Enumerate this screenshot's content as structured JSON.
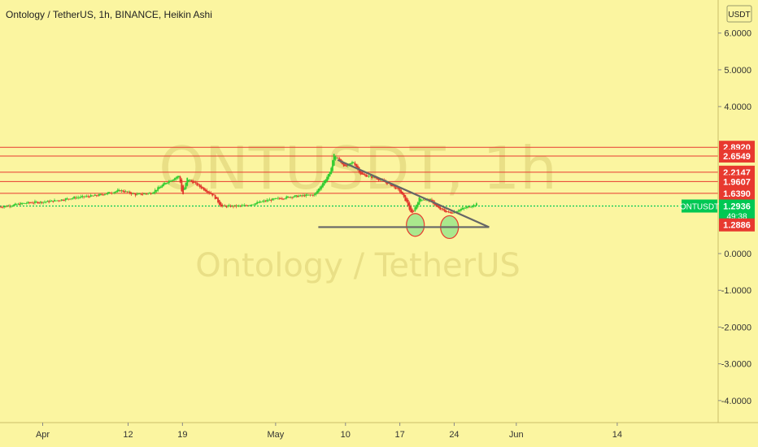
{
  "header": {
    "title": "Ontology / TetherUS, 1h, BINANCE, Heikin Ashi"
  },
  "watermark": {
    "symbol": "ONTUSDT, 1h",
    "name": "Ontology / TetherUS"
  },
  "currency_label": "USDT",
  "colors": {
    "background": "#fbf5a0",
    "candle_up": "#2fcc2f",
    "candle_down": "#e0352b",
    "level_line": "#e8392f",
    "level_label": "#e8392f",
    "current_price": "#00c853",
    "trendline": "#666666",
    "circle_fill": "#9be58a",
    "circle_stroke": "#e8392f"
  },
  "chart_data": {
    "type": "candlestick",
    "style": "Heikin Ashi",
    "interval": "1h",
    "exchange": "BINANCE",
    "symbol": "ONTUSDT",
    "y_axis": {
      "ticks": [
        "6.0000",
        "5.0000",
        "4.0000",
        "0.0000",
        "-1.0000",
        "-2.0000",
        "-3.0000",
        "-4.0000"
      ],
      "tick_values": [
        6,
        5,
        4,
        0,
        -1,
        -2,
        -3,
        -4
      ],
      "range": [
        -4.6,
        6.9
      ]
    },
    "x_axis": {
      "ticks": [
        "Apr",
        "12",
        "19",
        "May",
        "10",
        "17",
        "24",
        "Jun",
        "14"
      ],
      "tick_values": [
        1,
        12,
        19,
        31,
        40,
        47,
        54,
        62,
        75
      ],
      "range": [
        -4.5,
        88
      ]
    },
    "price_path": [
      [
        -4.5,
        1.27
      ],
      [
        -1,
        1.38
      ],
      [
        2,
        1.42
      ],
      [
        5,
        1.52
      ],
      [
        8,
        1.58
      ],
      [
        11,
        1.72
      ],
      [
        13,
        1.6
      ],
      [
        15,
        1.65
      ],
      [
        17,
        1.95
      ],
      [
        18.6,
        2.12
      ],
      [
        19,
        1.55
      ],
      [
        19.6,
        2.05
      ],
      [
        21,
        1.85
      ],
      [
        23,
        1.58
      ],
      [
        24,
        1.28
      ],
      [
        27,
        1.3
      ],
      [
        30,
        1.45
      ],
      [
        33,
        1.55
      ],
      [
        36,
        1.6
      ],
      [
        38,
        2.2
      ],
      [
        38.5,
        2.7
      ],
      [
        40,
        2.35
      ],
      [
        41,
        2.5
      ],
      [
        42,
        2.15
      ],
      [
        44,
        2.05
      ],
      [
        46,
        1.85
      ],
      [
        47,
        1.7
      ],
      [
        48,
        1.35
      ],
      [
        48.5,
        1.05
      ],
      [
        49.5,
        1.5
      ],
      [
        51,
        1.45
      ],
      [
        52,
        1.22
      ],
      [
        53.5,
        1.1
      ],
      [
        55,
        1.22
      ],
      [
        57,
        1.35
      ]
    ],
    "levels": [
      {
        "label": "2.8920",
        "value": 2.892
      },
      {
        "label": "2.6549",
        "value": 2.6549
      },
      {
        "label": "2.2147",
        "value": 2.2147
      },
      {
        "label": "1.9607",
        "value": 1.9607
      },
      {
        "label": "1.6390",
        "value": 1.639
      }
    ],
    "current_price": {
      "symbol": "ONTUSDT",
      "label": "1.2936",
      "value": 1.2936,
      "countdown": "49:38"
    },
    "low_marker": {
      "label": "1.2886",
      "value": 1.2886
    },
    "trendlines": [
      {
        "name": "descending",
        "from": [
          39,
          2.55
        ],
        "to": [
          58.5,
          0.72
        ]
      },
      {
        "name": "support",
        "from": [
          36.5,
          0.72
        ],
        "to": [
          58.5,
          0.72
        ]
      }
    ],
    "circles": [
      {
        "x": 49.0,
        "y": 0.78
      },
      {
        "x": 53.4,
        "y": 0.72
      }
    ]
  }
}
